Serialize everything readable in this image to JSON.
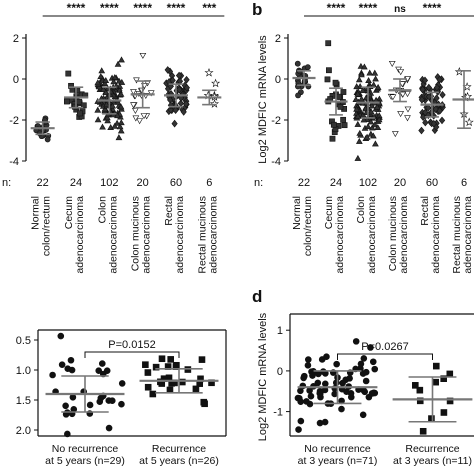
{
  "chart_data": [
    {
      "type": "scatter",
      "panel_label": "",
      "ylabel": "",
      "ylim": [
        -4,
        2
      ],
      "yticks": [
        -4,
        -2,
        0,
        2
      ],
      "n_prefix": "n:",
      "categories": [
        {
          "name": "Normal colon/rectum",
          "lines": [
            "Normal",
            "colon/rectum"
          ],
          "n": "22",
          "sig": "",
          "mean": -2.4,
          "sd": 0.3,
          "marker": "circle",
          "fill": "#333333",
          "spread": 0.2
        },
        {
          "name": "Cecum adenocarcinoma",
          "lines": [
            "Cecum",
            "adenocarcinoma"
          ],
          "n": "24",
          "sig": "****",
          "mean": -0.9,
          "sd": 0.5,
          "marker": "square",
          "fill": "#333333",
          "spread": 0.28
        },
        {
          "name": "Colon adenocarcinoma",
          "lines": [
            "Colon",
            "adenocarcinoma"
          ],
          "n": "102",
          "sig": "****",
          "mean": -1.05,
          "sd": 0.65,
          "marker": "triangle-up",
          "fill": "#333333",
          "spread": 0.38
        },
        {
          "name": "Colon mucinous adenocarcinoma",
          "lines": [
            "Colon mucinous",
            "adenocarcinoma"
          ],
          "n": "20",
          "sig": "****",
          "mean": -0.75,
          "sd": 0.65,
          "marker": "triangle-down",
          "fill": "#ffffff",
          "spread": 0.28
        },
        {
          "name": "Rectal adenocarcinoma",
          "lines": [
            "Rectal",
            "adenocarcinoma"
          ],
          "n": "60",
          "sig": "****",
          "mean": -0.8,
          "sd": 0.55,
          "marker": "diamond",
          "fill": "#333333",
          "spread": 0.34
        },
        {
          "name": "Rectal mucinous adenocarcinoma",
          "lines": [
            "Rectal mucinous",
            "adenocarcinoma"
          ],
          "n": "6",
          "sig": "***",
          "mean": -0.9,
          "sd": 0.35,
          "marker": "star",
          "fill": "#ffffff",
          "spread": 0.2
        }
      ]
    },
    {
      "type": "scatter",
      "panel_label": "b",
      "ylabel": "Log2 MDFIC mRNA levels",
      "ylim": [
        -4,
        2
      ],
      "yticks": [
        -4,
        -2,
        0,
        2
      ],
      "n_prefix": "n:",
      "categories": [
        {
          "name": "Normal colon/rectum",
          "lines": [
            "Normal",
            "colon/rectum"
          ],
          "n": "22",
          "sig": "",
          "mean": 0.05,
          "sd": 0.35,
          "marker": "circle",
          "fill": "#333333",
          "spread": 0.2
        },
        {
          "name": "Cecum adenocarcinoma",
          "lines": [
            "Cecum",
            "adenocarcinoma"
          ],
          "n": "24",
          "sig": "****",
          "mean": -1.1,
          "sd": 0.65,
          "marker": "square",
          "fill": "#333333",
          "spread": 0.28
        },
        {
          "name": "Colon adenocarcinoma",
          "lines": [
            "Colon",
            "adenocarcinoma"
          ],
          "n": "102",
          "sig": "****",
          "mean": -1.15,
          "sd": 0.75,
          "marker": "triangle-up",
          "fill": "#333333",
          "spread": 0.38
        },
        {
          "name": "Colon mucinous adenocarcinoma",
          "lines": [
            "Colon mucinous",
            "adenocarcinoma"
          ],
          "n": "20",
          "sig": "ns",
          "mean": -0.55,
          "sd": 0.55,
          "marker": "triangle-down",
          "fill": "#ffffff",
          "spread": 0.28
        },
        {
          "name": "Rectal adenocarcinoma",
          "lines": [
            "Rectal",
            "adenocarcinoma"
          ],
          "n": "60",
          "sig": "****",
          "mean": -1.25,
          "sd": 0.6,
          "marker": "diamond",
          "fill": "#333333",
          "spread": 0.34
        },
        {
          "name": "Rectal mucinous adenocarcinoma",
          "lines": [
            "Rectal mucinous",
            "adenocarcinoma"
          ],
          "n": "6",
          "sig": "",
          "mean": -1.0,
          "sd": 1.4,
          "marker": "star",
          "fill": "#ffffff",
          "spread": 0.2
        }
      ]
    },
    {
      "type": "scatter",
      "panel_label": "",
      "ylabel": "",
      "ylim": [
        -2.1,
        -0.4
      ],
      "yticks": [
        -2.0,
        -1.5,
        -1.0,
        -0.5
      ],
      "tick_labels": [
        "2.0",
        "1.5",
        "1.0",
        "0.5"
      ],
      "p_value": "P=0.0152",
      "categories": [
        {
          "name": "No recurrence at 5 years (n=29)",
          "lines": [
            "No recurrence",
            "at 5 years (n=29)"
          ],
          "n": "29",
          "mean": -1.4,
          "sd": 0.3,
          "marker": "circle",
          "fill": "#111111",
          "spread": 0.4
        },
        {
          "name": "Recurrence at 5 years (n=26)",
          "lines": [
            "Recurrence",
            "at 5 years (n=26)"
          ],
          "n": "26",
          "mean": -1.18,
          "sd": 0.2,
          "marker": "square",
          "fill": "#111111",
          "spread": 0.36
        }
      ]
    },
    {
      "type": "scatter",
      "panel_label": "d",
      "ylabel": "Log2 MDFIC mRNA levels",
      "ylim": [
        -1.6,
        1.3
      ],
      "yticks": [
        -1,
        0,
        1
      ],
      "p_value": "P=0.0267",
      "categories": [
        {
          "name": "No recurrence at 3 years (n=71)",
          "lines": [
            "No recurrence",
            "at 3 years (n=71)"
          ],
          "n": "71",
          "mean": -0.4,
          "sd": 0.4,
          "marker": "circle",
          "fill": "#111111",
          "spread": 0.42
        },
        {
          "name": "Recurrence at 3 years (n=11)",
          "lines": [
            "Recurrence",
            "at 3 years (n=11)"
          ],
          "n": "11",
          "mean": -0.7,
          "sd": 0.55,
          "marker": "square",
          "fill": "#111111",
          "spread": 0.22
        }
      ]
    }
  ]
}
